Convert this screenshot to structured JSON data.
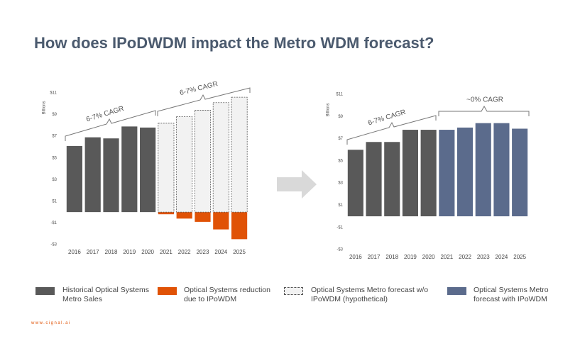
{
  "title": "How does IPoDWDM impact the Metro WDM forecast?",
  "footer": "www.cignal.ai",
  "chart_data": [
    {
      "type": "bar",
      "y_label": "Billions",
      "categories": [
        "2016",
        "2017",
        "2018",
        "2019",
        "2020",
        "2021",
        "2022",
        "2023",
        "2024",
        "2025"
      ],
      "series": [
        {
          "name": "Historical Optical Systems Metro Sales",
          "color": "#595959",
          "values": [
            6.1,
            6.9,
            6.8,
            7.9,
            7.8,
            null,
            null,
            null,
            null,
            null
          ]
        },
        {
          "name": "Optical Systems reduction due to IPoWDM",
          "color": "#e05206",
          "values": [
            null,
            null,
            null,
            null,
            null,
            -0.2,
            -0.6,
            -0.9,
            -1.6,
            -2.5
          ]
        },
        {
          "name": "Optical Systems Metro forecast w/o IPoWDM (hypothetical)",
          "color": "#f2f2f2",
          "dashed": true,
          "values": [
            null,
            null,
            null,
            null,
            null,
            8.2,
            8.8,
            9.4,
            10.1,
            10.6
          ]
        }
      ],
      "annotations": [
        "6-7% CAGR",
        "6-7% CAGR"
      ],
      "ylim": [
        -3,
        11
      ],
      "yticks": [
        {
          "value": 11,
          "label": "$11"
        },
        {
          "value": 9,
          "label": "$9"
        },
        {
          "value": 7,
          "label": "$7"
        },
        {
          "value": 5,
          "label": "$5"
        },
        {
          "value": 3,
          "label": "$3"
        },
        {
          "value": 1,
          "label": "$1"
        },
        {
          "value": -1,
          "label": "-$1"
        },
        {
          "value": -3,
          "label": "-$3"
        }
      ],
      "grid": false
    },
    {
      "type": "bar",
      "y_label": "Billions",
      "categories": [
        "2016",
        "2017",
        "2018",
        "2019",
        "2020",
        "2021",
        "2022",
        "2023",
        "2024",
        "2025"
      ],
      "series": [
        {
          "color": "#595959",
          "values": [
            6.0,
            6.7,
            6.7,
            7.8,
            7.8,
            null,
            null,
            null,
            null,
            null
          ]
        },
        {
          "name": "Optical Systems Metro forecast with IPoWDM",
          "color": "#5b6b8c",
          "values": [
            null,
            null,
            null,
            null,
            null,
            7.8,
            8.0,
            8.4,
            8.4,
            7.9
          ]
        }
      ],
      "annotations": [
        "6-7% CAGR",
        "~0% CAGR"
      ],
      "ylim": [
        -3,
        11
      ],
      "yticks": [
        {
          "value": 11,
          "label": "$11"
        },
        {
          "value": 9,
          "label": "$9"
        },
        {
          "value": 7,
          "label": "$7"
        },
        {
          "value": 5,
          "label": "$5"
        },
        {
          "value": 3,
          "label": "$3"
        },
        {
          "value": 1,
          "label": "$1"
        },
        {
          "value": -1,
          "label": "-$1"
        },
        {
          "value": -3,
          "label": "-$3"
        }
      ],
      "grid": false
    }
  ]
}
